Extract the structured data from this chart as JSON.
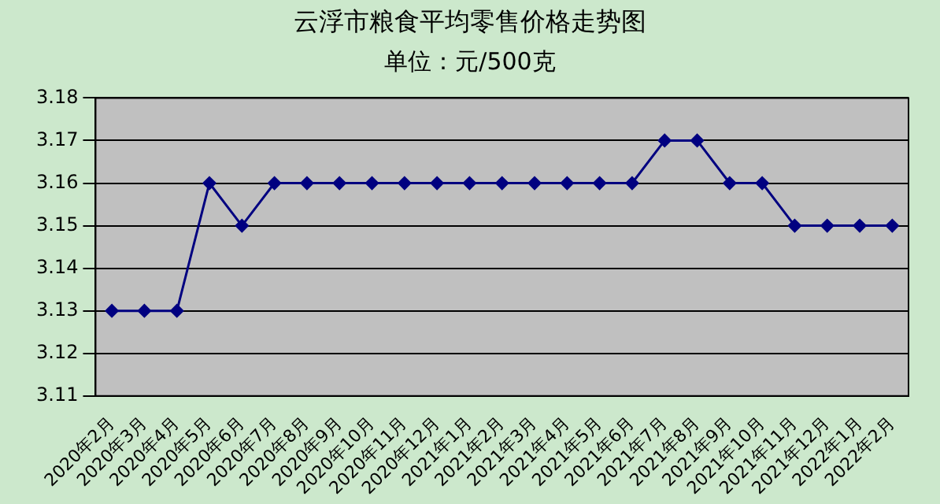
{
  "chart_data": {
    "type": "line",
    "title": "云浮市粮食平均零售价格走势图",
    "subtitle": "单位：元/500克",
    "categories": [
      "2020年2月",
      "2020年3月",
      "2020年4月",
      "2020年5月",
      "2020年6月",
      "2020年7月",
      "2020年8月",
      "2020年9月",
      "2020年10月",
      "2020年11月",
      "2020年12月",
      "2021年1月",
      "2021年2月",
      "2021年3月",
      "2021年4月",
      "2021年5月",
      "2021年6月",
      "2021年7月",
      "2021年8月",
      "2021年9月",
      "2021年10月",
      "2021年11月",
      "2021年12月",
      "2022年1月",
      "2022年2月"
    ],
    "series": [
      {
        "color": "#000080",
        "values": [
          3.13,
          3.13,
          3.13,
          3.16,
          3.15,
          3.16,
          3.16,
          3.16,
          3.16,
          3.16,
          3.16,
          3.16,
          3.16,
          3.16,
          3.16,
          3.16,
          3.16,
          3.17,
          3.17,
          3.16,
          3.16,
          3.15,
          3.15,
          3.15,
          3.15
        ]
      }
    ],
    "ylim": [
      3.11,
      3.18
    ],
    "yticks": [
      3.11,
      3.12,
      3.13,
      3.14,
      3.15,
      3.16,
      3.17,
      3.18
    ],
    "grid": "y",
    "marker": "diamond",
    "line_style": "solid"
  }
}
